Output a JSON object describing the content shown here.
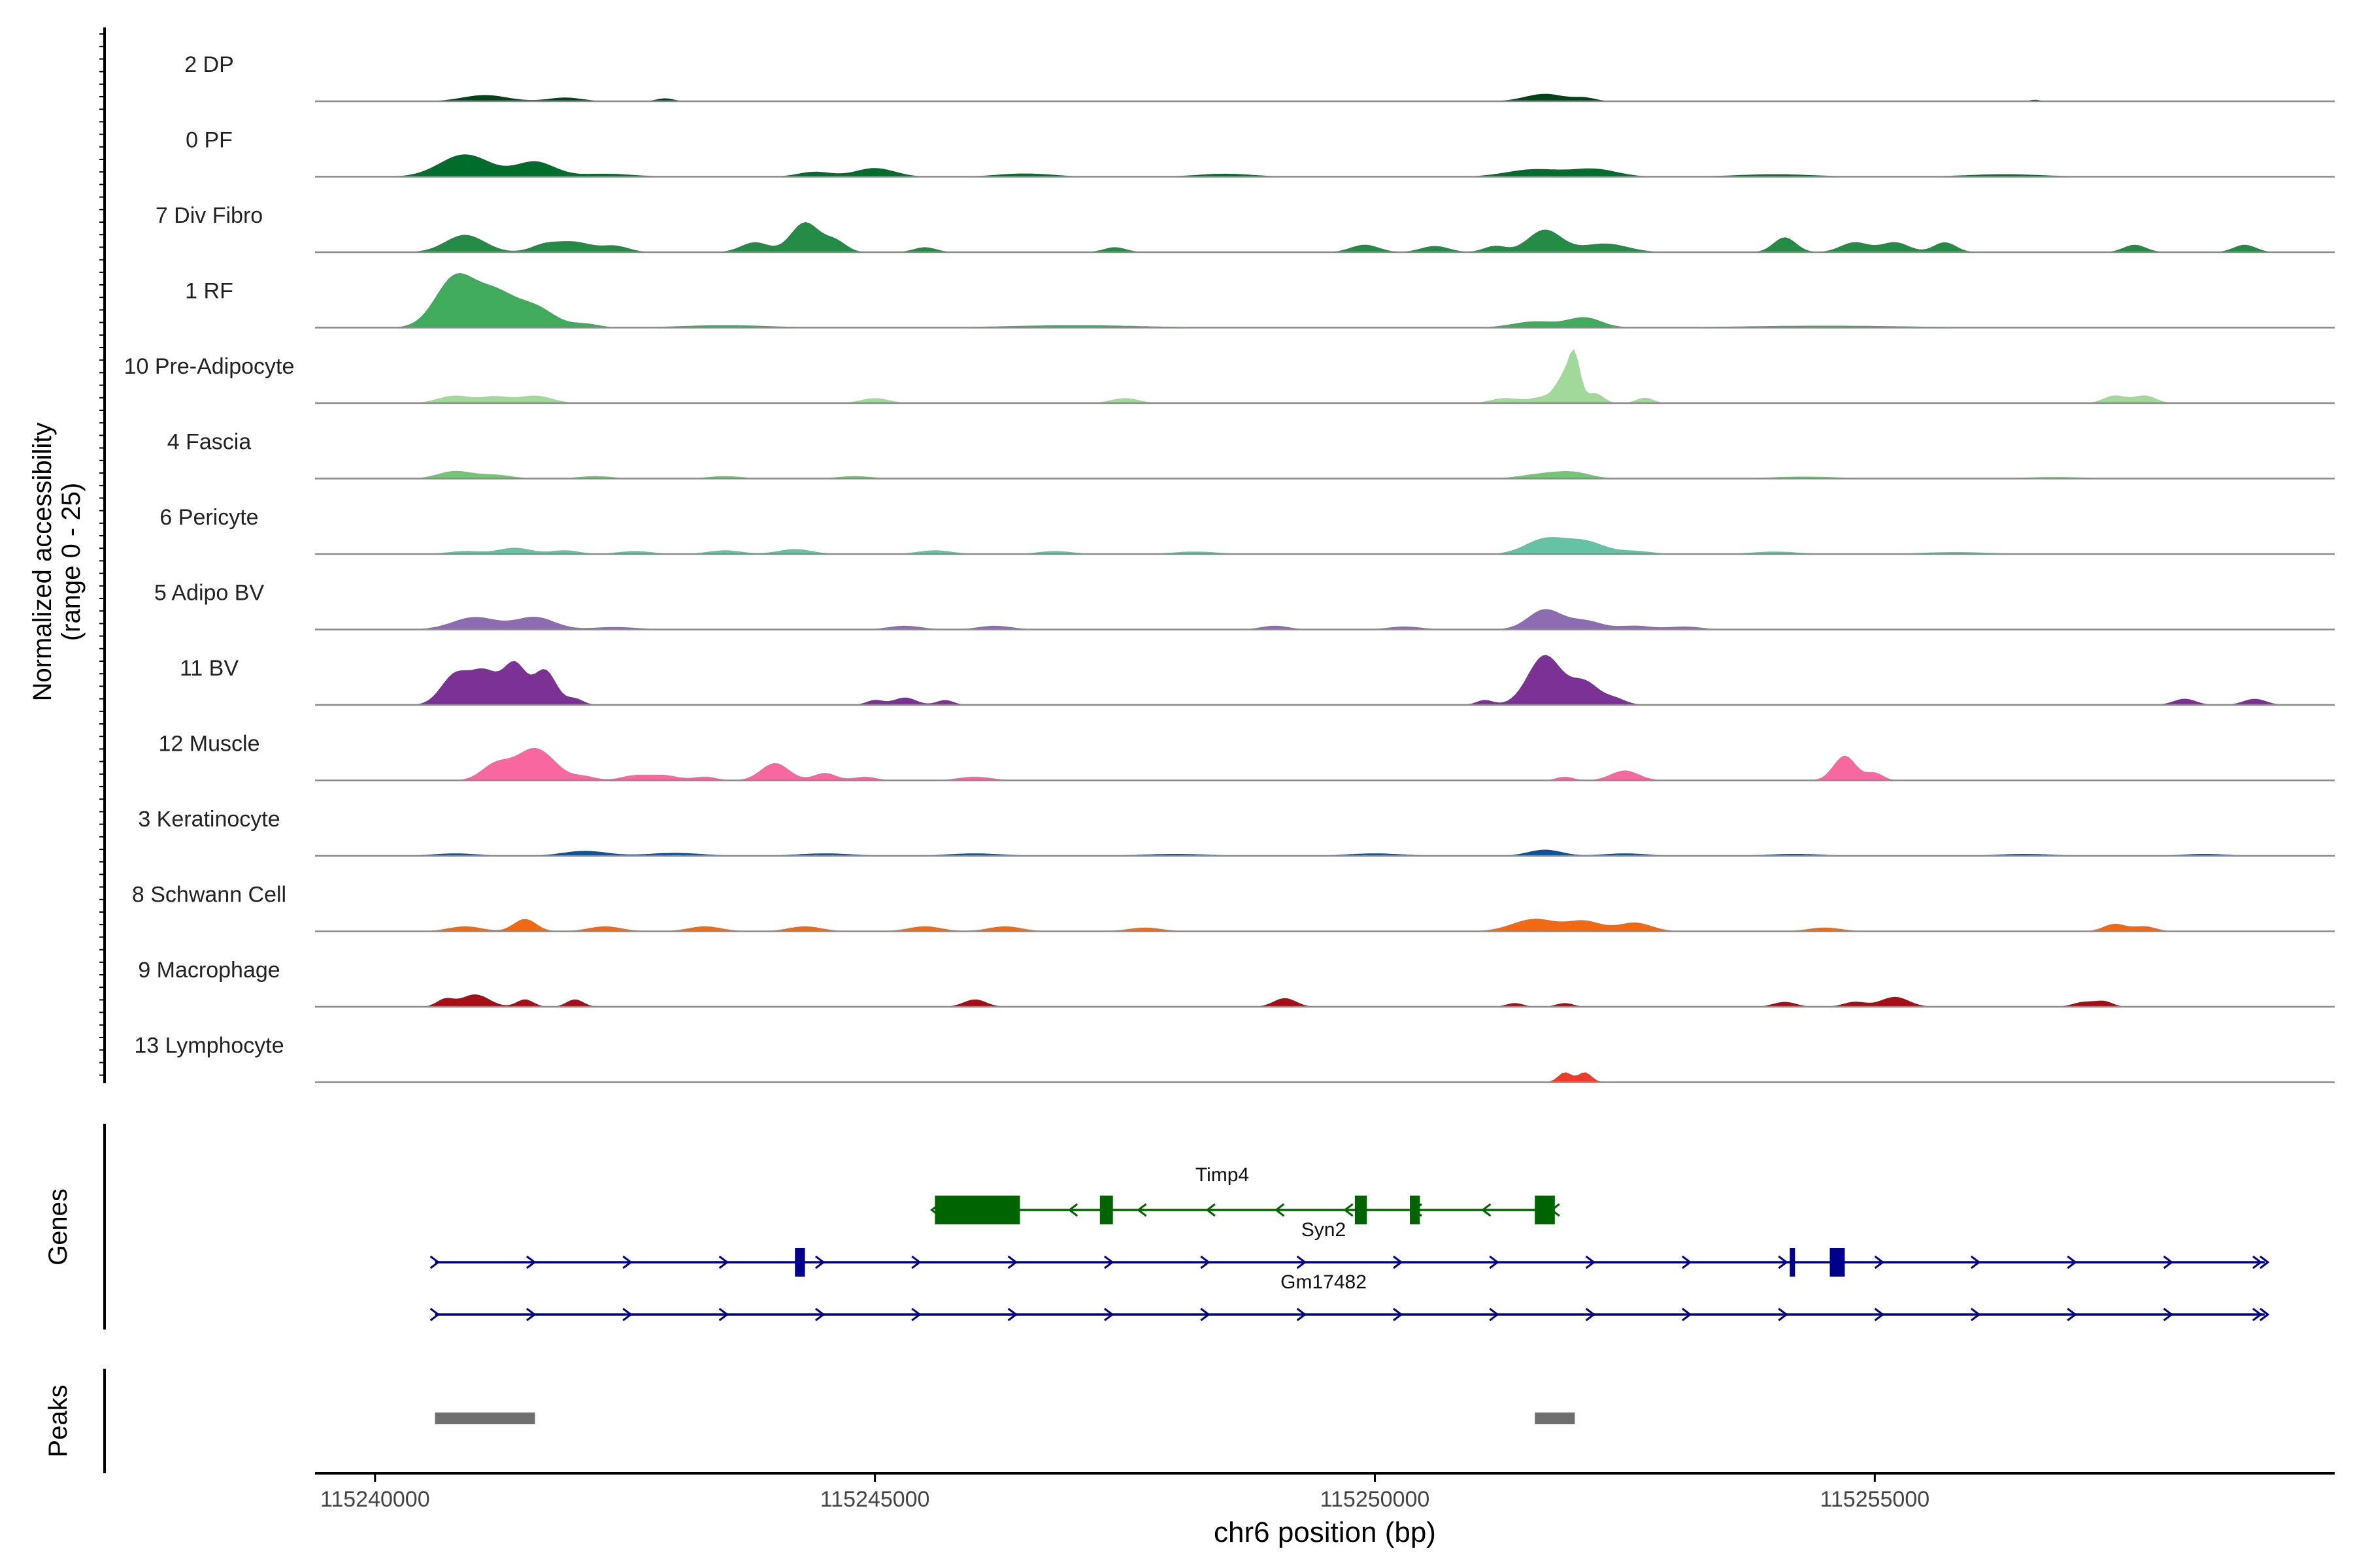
{
  "chart_data": {
    "type": "area",
    "title": "",
    "ylabel": "Normalized accessibility",
    "ylabel_range": "(range 0 - 25)",
    "xlabel": "chr6 position (bp)",
    "xlim": [
      115239400,
      115259600
    ],
    "ylim": [
      0,
      25
    ],
    "x_ticks": [
      115240000,
      115245000,
      115250000,
      115255000
    ],
    "x_tick_labels": [
      "115240000",
      "115245000",
      "115250000",
      "115255000"
    ],
    "tracks": [
      {
        "name": "2 DP",
        "color": "#00441b",
        "peaks": [
          [
            115241100,
            2.5,
            400
          ],
          [
            115241900,
            1.5,
            300
          ],
          [
            115242900,
            1.2,
            150
          ],
          [
            115251700,
            3,
            350
          ],
          [
            115252100,
            1.3,
            200
          ],
          [
            115256600,
            0.6,
            100
          ]
        ]
      },
      {
        "name": "0 PF",
        "color": "#006d2c",
        "peaks": [
          [
            115240900,
            9,
            450
          ],
          [
            115241600,
            6,
            350
          ],
          [
            115242300,
            1.2,
            500
          ],
          [
            115244400,
            2,
            300
          ],
          [
            115245000,
            3.5,
            350
          ],
          [
            115246500,
            1.3,
            500
          ],
          [
            115248500,
            1.2,
            500
          ],
          [
            115251600,
            3,
            500
          ],
          [
            115252200,
            3,
            400
          ],
          [
            115254000,
            1,
            700
          ],
          [
            115256300,
            1,
            700
          ]
        ]
      },
      {
        "name": "7 Div Fibro",
        "color": "#238b45",
        "peaks": [
          [
            115240900,
            7,
            350
          ],
          [
            115241700,
            3,
            250
          ],
          [
            115242000,
            4,
            300
          ],
          [
            115242400,
            2.5,
            250
          ],
          [
            115243800,
            4,
            250
          ],
          [
            115244300,
            12,
            250
          ],
          [
            115244600,
            4.5,
            200
          ],
          [
            115245500,
            2,
            200
          ],
          [
            115247400,
            2,
            200
          ],
          [
            115249900,
            3,
            250
          ],
          [
            115250600,
            2.5,
            250
          ],
          [
            115251200,
            2.5,
            200
          ],
          [
            115251700,
            9,
            300
          ],
          [
            115252300,
            3.5,
            400
          ],
          [
            115254100,
            6,
            200
          ],
          [
            115254800,
            4,
            250
          ],
          [
            115255200,
            4,
            250
          ],
          [
            115255700,
            4,
            200
          ],
          [
            115257600,
            3,
            200
          ],
          [
            115258700,
            3,
            200
          ]
        ]
      },
      {
        "name": "1 RF",
        "color": "#41ab5d",
        "peaks": [
          [
            115240800,
            20,
            350
          ],
          [
            115241200,
            13,
            350
          ],
          [
            115241600,
            8,
            350
          ],
          [
            115242100,
            1.5,
            250
          ],
          [
            115243500,
            1,
            800
          ],
          [
            115247000,
            1,
            1200
          ],
          [
            115251600,
            2.5,
            400
          ],
          [
            115252100,
            4,
            300
          ],
          [
            115254500,
            0.8,
            1500
          ]
        ]
      },
      {
        "name": "10 Pre-Adipocyte",
        "color": "#a1d99b",
        "peaks": [
          [
            115240800,
            3,
            300
          ],
          [
            115241200,
            2.5,
            250
          ],
          [
            115241600,
            3,
            300
          ],
          [
            115245000,
            2,
            250
          ],
          [
            115247500,
            2,
            250
          ],
          [
            115251300,
            2,
            250
          ],
          [
            115251700,
            2.5,
            250
          ],
          [
            115251900,
            10,
            150
          ],
          [
            115252000,
            16,
            100
          ],
          [
            115252200,
            4,
            150
          ],
          [
            115252700,
            2.2,
            150
          ],
          [
            115257400,
            3,
            200
          ],
          [
            115257700,
            3,
            200
          ]
        ]
      },
      {
        "name": "4 Fascia",
        "color": "#74c476",
        "peaks": [
          [
            115240800,
            3,
            300
          ],
          [
            115241200,
            1.5,
            300
          ],
          [
            115242200,
            1,
            300
          ],
          [
            115243500,
            1,
            300
          ],
          [
            115244800,
            1,
            300
          ],
          [
            115251700,
            2,
            400
          ],
          [
            115252000,
            2,
            300
          ],
          [
            115254300,
            0.8,
            600
          ],
          [
            115256800,
            0.6,
            600
          ]
        ]
      },
      {
        "name": "6 Pericyte",
        "color": "#66c2a4",
        "peaks": [
          [
            115240900,
            1.2,
            300
          ],
          [
            115241400,
            2.5,
            300
          ],
          [
            115241900,
            1.5,
            250
          ],
          [
            115242600,
            1.2,
            300
          ],
          [
            115243500,
            1.5,
            300
          ],
          [
            115244200,
            2,
            300
          ],
          [
            115245600,
            1.5,
            300
          ],
          [
            115246800,
            1.2,
            300
          ],
          [
            115248200,
            1,
            400
          ],
          [
            115251700,
            6,
            350
          ],
          [
            115252100,
            5,
            350
          ],
          [
            115252600,
            1.2,
            300
          ],
          [
            115254000,
            1,
            400
          ],
          [
            115255800,
            0.8,
            600
          ]
        ]
      },
      {
        "name": "5 Adipo BV",
        "color": "#8c6bb1",
        "peaks": [
          [
            115241000,
            5,
            400
          ],
          [
            115241600,
            5,
            350
          ],
          [
            115242400,
            1,
            400
          ],
          [
            115245300,
            1.5,
            300
          ],
          [
            115246200,
            1.5,
            300
          ],
          [
            115249000,
            1.5,
            250
          ],
          [
            115250300,
            1.2,
            300
          ],
          [
            115251700,
            8,
            300
          ],
          [
            115252100,
            3.5,
            300
          ],
          [
            115252600,
            1.5,
            300
          ],
          [
            115253100,
            1.2,
            300
          ]
        ]
      },
      {
        "name": "11 BV",
        "color": "#7b3294",
        "peaks": [
          [
            115240800,
            12,
            250
          ],
          [
            115241100,
            13,
            250
          ],
          [
            115241400,
            16,
            200
          ],
          [
            115241700,
            14,
            200
          ],
          [
            115242000,
            2.5,
            150
          ],
          [
            115245000,
            2,
            150
          ],
          [
            115245300,
            3,
            200
          ],
          [
            115245700,
            2,
            150
          ],
          [
            115251100,
            2,
            150
          ],
          [
            115251700,
            20,
            300
          ],
          [
            115252100,
            9,
            250
          ],
          [
            115252400,
            2.5,
            200
          ],
          [
            115258100,
            2.5,
            200
          ],
          [
            115258800,
            2.5,
            200
          ]
        ]
      },
      {
        "name": "12 Muscle",
        "color": "#f768a1",
        "peaks": [
          [
            115241200,
            6,
            250
          ],
          [
            115241600,
            13,
            350
          ],
          [
            115242100,
            1.5,
            200
          ],
          [
            115242600,
            2,
            250
          ],
          [
            115242900,
            2,
            250
          ],
          [
            115243300,
            1.5,
            200
          ],
          [
            115244000,
            7,
            250
          ],
          [
            115244500,
            3,
            200
          ],
          [
            115244900,
            1.5,
            200
          ],
          [
            115246000,
            1.5,
            300
          ],
          [
            115251900,
            1.5,
            150
          ],
          [
            115252500,
            4,
            250
          ],
          [
            115254700,
            10,
            200
          ],
          [
            115255000,
            3,
            150
          ]
        ]
      },
      {
        "name": "3 Keratinocyte",
        "color": "#08519c",
        "peaks": [
          [
            115240800,
            1,
            400
          ],
          [
            115242100,
            2,
            400
          ],
          [
            115243000,
            1.2,
            500
          ],
          [
            115244500,
            1,
            500
          ],
          [
            115246000,
            1,
            500
          ],
          [
            115248000,
            0.8,
            600
          ],
          [
            115250000,
            1,
            500
          ],
          [
            115251700,
            2.5,
            300
          ],
          [
            115252500,
            1,
            400
          ],
          [
            115254200,
            0.8,
            500
          ],
          [
            115256500,
            0.8,
            500
          ],
          [
            115258300,
            0.8,
            400
          ]
        ]
      },
      {
        "name": "8 Schwann Cell",
        "color": "#f16913",
        "peaks": [
          [
            115240900,
            2,
            300
          ],
          [
            115241500,
            5,
            200
          ],
          [
            115242300,
            2,
            300
          ],
          [
            115243300,
            2,
            300
          ],
          [
            115244300,
            2,
            300
          ],
          [
            115245500,
            2,
            300
          ],
          [
            115246300,
            2,
            300
          ],
          [
            115247700,
            1.5,
            300
          ],
          [
            115251600,
            5,
            400
          ],
          [
            115252100,
            4,
            300
          ],
          [
            115252600,
            3.5,
            300
          ],
          [
            115254500,
            1.5,
            300
          ],
          [
            115257400,
            3,
            200
          ],
          [
            115257700,
            2,
            200
          ]
        ]
      },
      {
        "name": "9 Macrophage",
        "color": "#a50f15",
        "peaks": [
          [
            115240700,
            3,
            150
          ],
          [
            115241000,
            5,
            250
          ],
          [
            115241500,
            3,
            150
          ],
          [
            115242000,
            3,
            150
          ],
          [
            115246000,
            3,
            200
          ],
          [
            115249100,
            3.5,
            200
          ],
          [
            115251400,
            1.5,
            150
          ],
          [
            115251900,
            1.5,
            150
          ],
          [
            115254100,
            2,
            200
          ],
          [
            115254800,
            2,
            200
          ],
          [
            115255200,
            4,
            250
          ],
          [
            115257100,
            2,
            200
          ],
          [
            115257300,
            2,
            150
          ]
        ]
      },
      {
        "name": "13 Lymphocyte",
        "color": "#ef3b2c",
        "peaks": [
          [
            115251900,
            4,
            120
          ],
          [
            115252100,
            4,
            120
          ]
        ]
      }
    ],
    "genes": [
      {
        "name": "Timp4",
        "strand": "-",
        "color": "#006400",
        "start": 115245600,
        "end": 115251800,
        "exons": [
          [
            115245600,
            115246450
          ],
          [
            115247250,
            115247380
          ],
          [
            115249800,
            115249920
          ],
          [
            115250350,
            115250450
          ],
          [
            115251600,
            115251800
          ]
        ]
      },
      {
        "name": "Syn2",
        "strand": "+",
        "color": "#00008b",
        "start": 115240600,
        "end": 115258900,
        "exons": [
          [
            115244200,
            115244300
          ],
          [
            115254150,
            115254200
          ],
          [
            115254550,
            115254700
          ]
        ]
      },
      {
        "name": "Gm17482",
        "strand": "+",
        "color": "#00008b",
        "start": 115240600,
        "end": 115258900,
        "exons": []
      }
    ],
    "peaks_track": [
      [
        115240600,
        115241600
      ],
      [
        115251600,
        115252000
      ]
    ],
    "panel_labels": {
      "genes": "Genes",
      "peaks": "Peaks"
    }
  }
}
